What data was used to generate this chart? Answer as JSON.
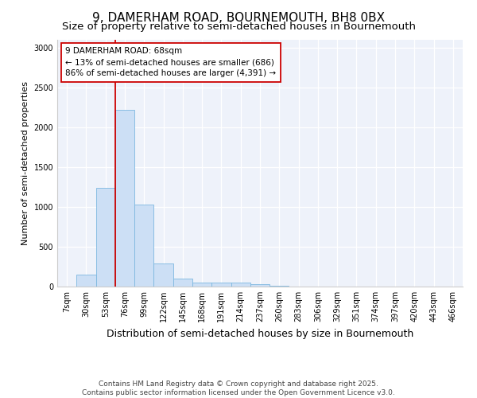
{
  "title1": "9, DAMERHAM ROAD, BOURNEMOUTH, BH8 0BX",
  "title2": "Size of property relative to semi-detached houses in Bournemouth",
  "xlabel": "Distribution of semi-detached houses by size in Bournemouth",
  "ylabel": "Number of semi-detached properties",
  "categories": [
    "7sqm",
    "30sqm",
    "53sqm",
    "76sqm",
    "99sqm",
    "122sqm",
    "145sqm",
    "168sqm",
    "191sqm",
    "214sqm",
    "237sqm",
    "260sqm",
    "283sqm",
    "306sqm",
    "329sqm",
    "351sqm",
    "374sqm",
    "397sqm",
    "420sqm",
    "443sqm",
    "466sqm"
  ],
  "values": [
    5,
    150,
    1240,
    2220,
    1030,
    290,
    100,
    55,
    55,
    55,
    30,
    10,
    0,
    0,
    0,
    0,
    0,
    0,
    0,
    0,
    0
  ],
  "bar_color": "#ccdff5",
  "bar_edge_color": "#7db8e0",
  "annotation_text_line1": "9 DAMERHAM ROAD: 68sqm",
  "annotation_text_line2": "← 13% of semi-detached houses are smaller (686)",
  "annotation_text_line3": "86% of semi-detached houses are larger (4,391) →",
  "annotation_box_color": "#ffffff",
  "annotation_box_edge": "#cc0000",
  "vline_color": "#cc0000",
  "vline_x": 2.5,
  "ylim": [
    0,
    3100
  ],
  "yticks": [
    0,
    500,
    1000,
    1500,
    2000,
    2500,
    3000
  ],
  "bg_color": "#eef2fa",
  "footer": "Contains HM Land Registry data © Crown copyright and database right 2025.\nContains public sector information licensed under the Open Government Licence v3.0.",
  "title1_fontsize": 11,
  "title2_fontsize": 9.5,
  "xlabel_fontsize": 9,
  "ylabel_fontsize": 8,
  "tick_fontsize": 7,
  "annotation_fontsize": 7.5,
  "footer_fontsize": 6.5
}
